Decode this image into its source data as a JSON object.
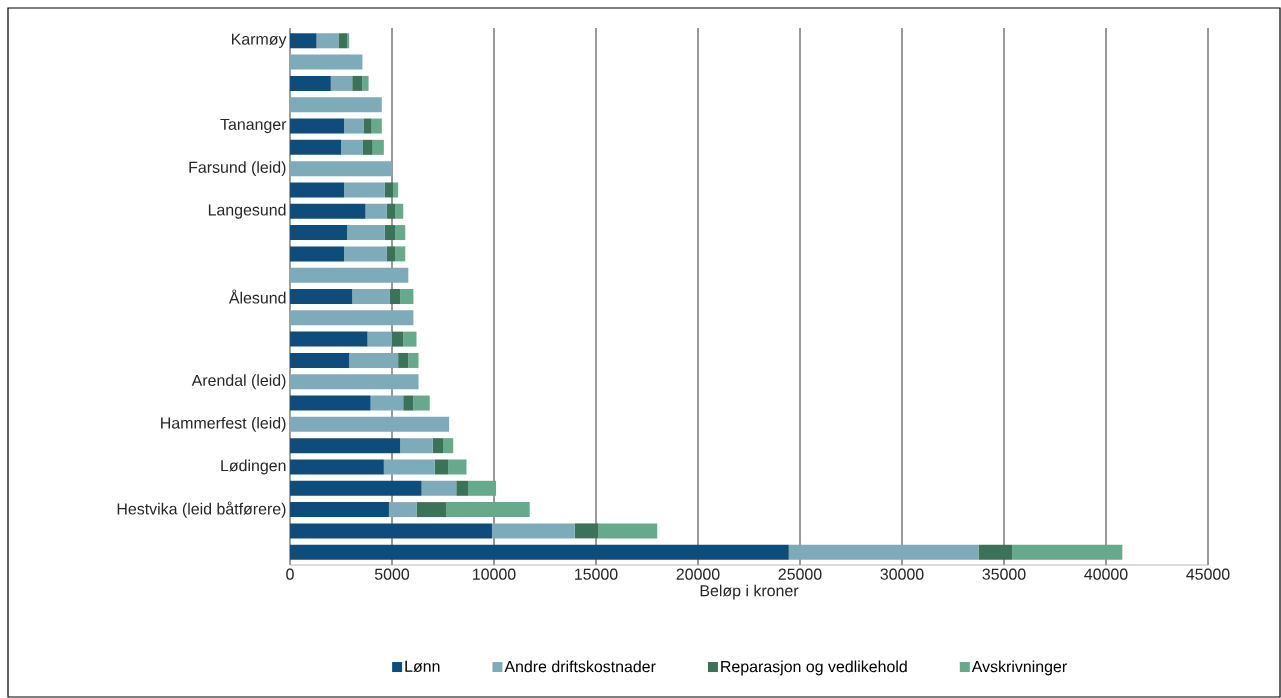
{
  "chart_data": {
    "type": "bar",
    "orientation": "horizontal",
    "stacked": true,
    "xlabel": "Beløp i kroner",
    "xlim": [
      0,
      45000
    ],
    "xticks": [
      0,
      5000,
      10000,
      15000,
      20000,
      25000,
      30000,
      35000,
      40000,
      45000
    ],
    "grid": "x",
    "legend": "bottom",
    "categories": [
      "Karmøy",
      null,
      null,
      null,
      "Tananger",
      null,
      "Farsund (leid)",
      null,
      "Langesund",
      null,
      null,
      null,
      "Ålesund",
      null,
      null,
      null,
      "Arendal (leid)",
      null,
      "Hammerfest (leid)",
      null,
      "Lødingen",
      null,
      "Hestvika (leid båtførere)",
      null,
      null
    ],
    "series": [
      {
        "name": "Lønn",
        "color": "#0e4d7b",
        "values": [
          1300,
          0,
          2000,
          0,
          2650,
          2500,
          0,
          2650,
          3700,
          2800,
          2650,
          0,
          3050,
          0,
          3800,
          2900,
          0,
          3950,
          0,
          5400,
          4600,
          6450,
          4850,
          9900,
          24450
        ]
      },
      {
        "name": "Andre driftskostnader",
        "color": "#7eabba",
        "values": [
          1100,
          3550,
          1050,
          4500,
          950,
          1050,
          5000,
          2000,
          1050,
          1850,
          2100,
          5800,
          1850,
          6050,
          1200,
          2400,
          6300,
          1600,
          7800,
          1600,
          2500,
          1700,
          1350,
          4050,
          9300
        ]
      },
      {
        "name": "Reparasjon og vedlikehold",
        "color": "#3b735a",
        "values": [
          400,
          0,
          500,
          0,
          400,
          500,
          0,
          400,
          400,
          500,
          400,
          0,
          500,
          0,
          550,
          500,
          0,
          500,
          0,
          500,
          650,
          600,
          1450,
          1150,
          1650
        ]
      },
      {
        "name": "Avskrivninger",
        "color": "#66a98b",
        "values": [
          100,
          0,
          300,
          0,
          500,
          550,
          0,
          250,
          400,
          500,
          500,
          0,
          650,
          0,
          650,
          500,
          0,
          800,
          0,
          500,
          900,
          1350,
          4100,
          2900,
          5400
        ]
      }
    ]
  }
}
